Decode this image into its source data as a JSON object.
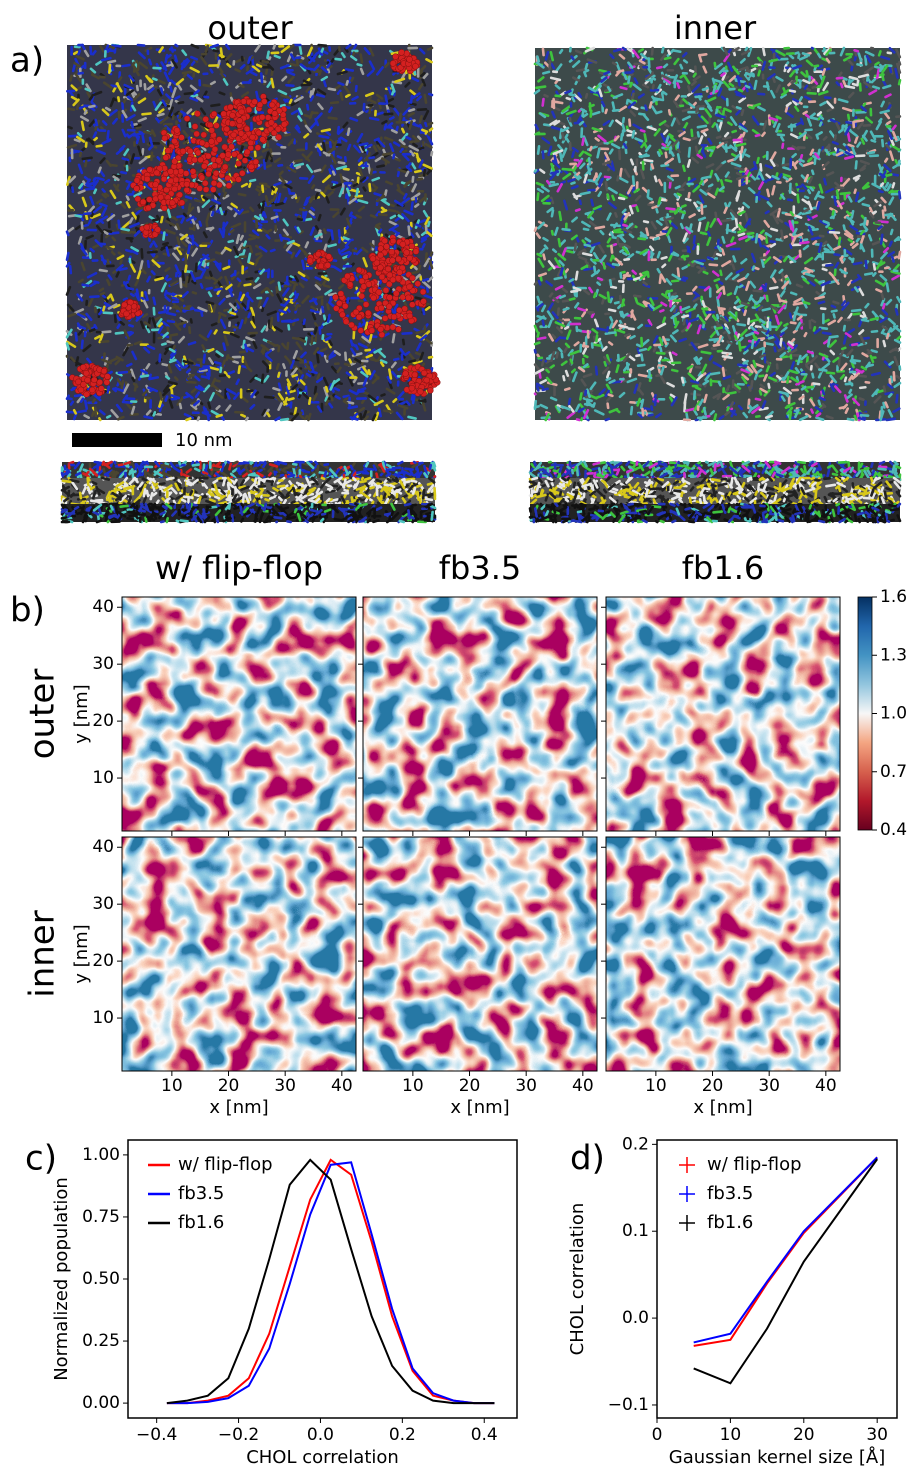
{
  "figure_a": {
    "label": "a)",
    "titles": [
      "outer",
      "inner"
    ],
    "scale_bar": "10 nm"
  },
  "chart_data": [
    {
      "type": "heatmap",
      "panel_label": "b)",
      "column_titles": [
        "w/ flip-flop",
        "fb3.5",
        "fb1.6"
      ],
      "row_titles": [
        "outer",
        "inner"
      ],
      "xlabel": "x [nm]",
      "ylabel": "y [nm]",
      "xlim": [
        1.2,
        42.5
      ],
      "ylim": [
        0.7,
        41.8
      ],
      "xticks": [
        10,
        20,
        30,
        40
      ],
      "yticks": [
        10,
        20,
        30,
        40
      ],
      "colormap": "RdBu",
      "clim": [
        0.4,
        1.6
      ],
      "cticks": [
        0.4,
        0.7,
        {
          "value": 1,
          "label": "1.0"
        },
        1.3,
        1.6
      ]
    },
    {
      "type": "line",
      "panel_label": "c)",
      "xlabel": "CHOL correlation",
      "ylabel": "Normalized population",
      "x": [
        -0.375,
        -0.325,
        -0.275,
        -0.225,
        -0.175,
        -0.125,
        -0.075,
        -0.025,
        0.025,
        0.075,
        0.125,
        0.175,
        0.225,
        0.275,
        0.325,
        0.375,
        0.425
      ],
      "series": [
        {
          "name": "w/ flip-flop",
          "color": "#ff0000",
          "values": [
            0,
            0,
            0.01,
            0.03,
            0.1,
            0.28,
            0.55,
            0.82,
            0.98,
            0.92,
            0.65,
            0.35,
            0.13,
            0.03,
            0.01,
            0,
            0
          ]
        },
        {
          "name": "fb3.5",
          "color": "#0000ff",
          "values": [
            0,
            0,
            0.005,
            0.02,
            0.07,
            0.22,
            0.48,
            0.76,
            0.96,
            0.97,
            0.68,
            0.38,
            0.14,
            0.04,
            0.01,
            0,
            0
          ]
        },
        {
          "name": "fb1.6",
          "color": "#000000",
          "values": [
            0,
            0.01,
            0.03,
            0.1,
            0.3,
            0.58,
            0.88,
            0.98,
            0.9,
            0.62,
            0.35,
            0.15,
            0.05,
            0.01,
            0,
            0,
            0
          ]
        }
      ],
      "xlim": [
        -0.47,
        0.48
      ],
      "xticks": [
        {
          "value": -0.4,
          "label": "−0.4"
        },
        {
          "value": -0.2,
          "label": "−0.2"
        },
        {
          "value": 0,
          "label": "0.0"
        },
        0.2,
        0.4
      ],
      "ylim": [
        -0.06,
        1.06
      ],
      "yticks": [
        {
          "value": 0,
          "label": "0.00"
        },
        0.25,
        {
          "value": 0.5,
          "label": "0.50"
        },
        0.75,
        {
          "value": 1,
          "label": "1.00"
        }
      ],
      "legend": "upper left"
    },
    {
      "type": "line",
      "panel_label": "d)",
      "xlabel": "Gaussian kernel size [Å]",
      "ylabel": "CHOL correlation",
      "x": [
        5,
        10,
        15,
        20,
        30
      ],
      "series": [
        {
          "name": "w/ flip-flop",
          "color": "#ff0000",
          "values": [
            -0.032,
            -0.025,
            0.04,
            0.098,
            0.185
          ]
        },
        {
          "name": "fb3.5",
          "color": "#0000ff",
          "values": [
            -0.028,
            -0.018,
            0.042,
            0.1,
            0.185
          ]
        },
        {
          "name": "fb1.6",
          "color": "#000000",
          "values": [
            -0.058,
            -0.075,
            -0.012,
            0.065,
            0.183
          ]
        }
      ],
      "xlim": [
        0,
        32.7
      ],
      "xticks": [
        0,
        10,
        20,
        30
      ],
      "ylim": [
        -0.115,
        0.205
      ],
      "yticks": [
        {
          "value": -0.1,
          "label": "−0.1"
        },
        {
          "value": 0,
          "label": "0.0"
        },
        0.1,
        0.2
      ],
      "legend": "upper left"
    }
  ]
}
